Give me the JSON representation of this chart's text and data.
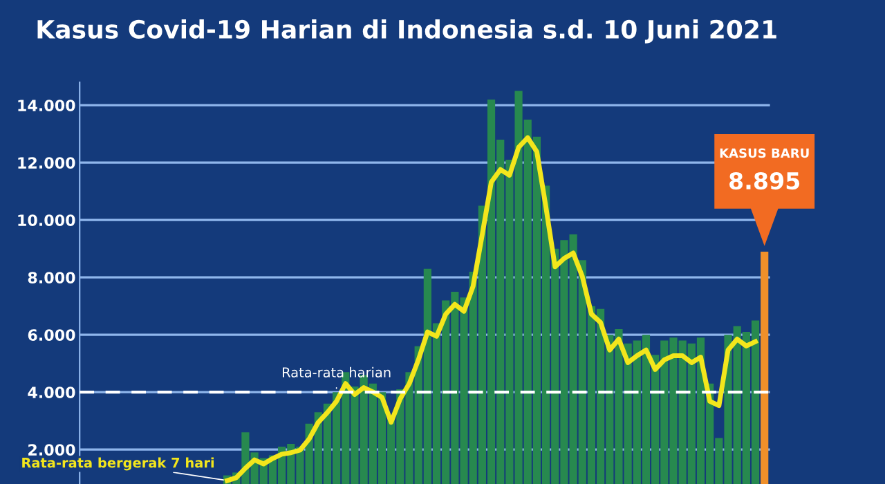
{
  "chart_data": {
    "type": "bar",
    "title": "Kasus Covid-19 Harian di Indonesia s.d. 10 Juni 2021",
    "categories": [
      null,
      null,
      null,
      null,
      null,
      null,
      null,
      null,
      null,
      null,
      null,
      null,
      null,
      null,
      null,
      null,
      null,
      null,
      null,
      null,
      null,
      null,
      null,
      null,
      null,
      null,
      null,
      null,
      null,
      null,
      null,
      null,
      null,
      null,
      null,
      null,
      null,
      null,
      null,
      null,
      null,
      null,
      null,
      null,
      null,
      null,
      null,
      null,
      null,
      null,
      null,
      null,
      null,
      null,
      null,
      null,
      null,
      null,
      null,
      null
    ],
    "series": [
      {
        "color": "#27894f",
        "colors": [
          null,
          null,
          null,
          null,
          null,
          null,
          null,
          null,
          null,
          null,
          null,
          null,
          null,
          null,
          null,
          null,
          null,
          null,
          null,
          null,
          null,
          null,
          null,
          null,
          null,
          null,
          null,
          null,
          null,
          null,
          null,
          null,
          null,
          null,
          null,
          null,
          null,
          null,
          null,
          null,
          null,
          null,
          null,
          null,
          null,
          null,
          null,
          null,
          null,
          null,
          null,
          null,
          null,
          null,
          null,
          null,
          null,
          null,
          null,
          "#f0902a"
        ],
        "values": [
          1100,
          1200,
          2600,
          1900,
          1700,
          1800,
          2100,
          2200,
          2100,
          2900,
          3300,
          3600,
          4000,
          4700,
          4200,
          4600,
          4300,
          4000,
          3100,
          4100,
          4700,
          5600,
          8300,
          6400,
          7200,
          7500,
          7300,
          8200,
          10500,
          14200,
          12800,
          12100,
          14500,
          13500,
          12900,
          11200,
          9000,
          9300,
          9500,
          8600,
          7000,
          6900,
          6000,
          6200,
          5700,
          5800,
          6000,
          5300,
          5800,
          5900,
          5800,
          5700,
          5900,
          4300,
          2400,
          6000,
          6300,
          6100,
          6500,
          8895
        ],
        "value_labels": [
          null,
          null,
          null,
          null,
          null,
          null,
          null,
          null,
          null,
          null,
          null,
          null,
          null,
          null,
          null,
          null,
          null,
          null,
          null,
          null,
          null,
          null,
          null,
          null,
          null,
          null,
          null,
          null,
          null,
          null,
          null,
          null,
          null,
          null,
          null,
          null,
          null,
          null,
          null,
          null,
          null,
          null,
          null,
          null,
          null,
          null,
          null,
          null,
          null,
          null,
          null,
          null,
          null,
          null,
          null,
          null,
          null,
          null,
          null,
          "8.895"
        ]
      },
      {
        "type": "line",
        "name": "Rata-rata bergerak 7 hari",
        "color": "#f3e61c",
        "values": [
          920,
          1020,
          1350,
          1640,
          1500,
          1690,
          1840,
          1890,
          1980,
          2370,
          2950,
          3290,
          3680,
          4300,
          3920,
          4160,
          4010,
          3820,
          2950,
          3770,
          4300,
          5130,
          6100,
          5950,
          6720,
          7060,
          6820,
          7690,
          9480,
          11320,
          11760,
          11560,
          12530,
          12870,
          12380,
          10450,
          8370,
          8660,
          8850,
          8030,
          6720,
          6430,
          5470,
          5850,
          5030,
          5270,
          5470,
          4790,
          5130,
          5270,
          5270,
          5030,
          5220,
          3680,
          3530,
          5470,
          5850,
          5610,
          5760,
          null
        ]
      }
    ],
    "ylim": [
      800,
      14800
    ],
    "yticks": [
      {
        "value": 2000,
        "label": "2.000"
      },
      {
        "value": 4000,
        "label": "4.000"
      },
      {
        "value": 6000,
        "label": "6.000"
      },
      {
        "value": 8000,
        "label": "8.000"
      },
      {
        "value": 10000,
        "label": "10.000"
      },
      {
        "value": 12000,
        "label": "12.000"
      },
      {
        "value": 14000,
        "label": "14.000"
      }
    ],
    "grid": "y",
    "tick_labels": "y",
    "legend": false,
    "ref_lines": [
      {
        "axis": "y",
        "value": 4000,
        "label": "Rata-rata harian",
        "color": "#ffffff",
        "line_style": "dashed"
      }
    ],
    "annotations": [
      "KASUS BARU"
    ]
  }
}
